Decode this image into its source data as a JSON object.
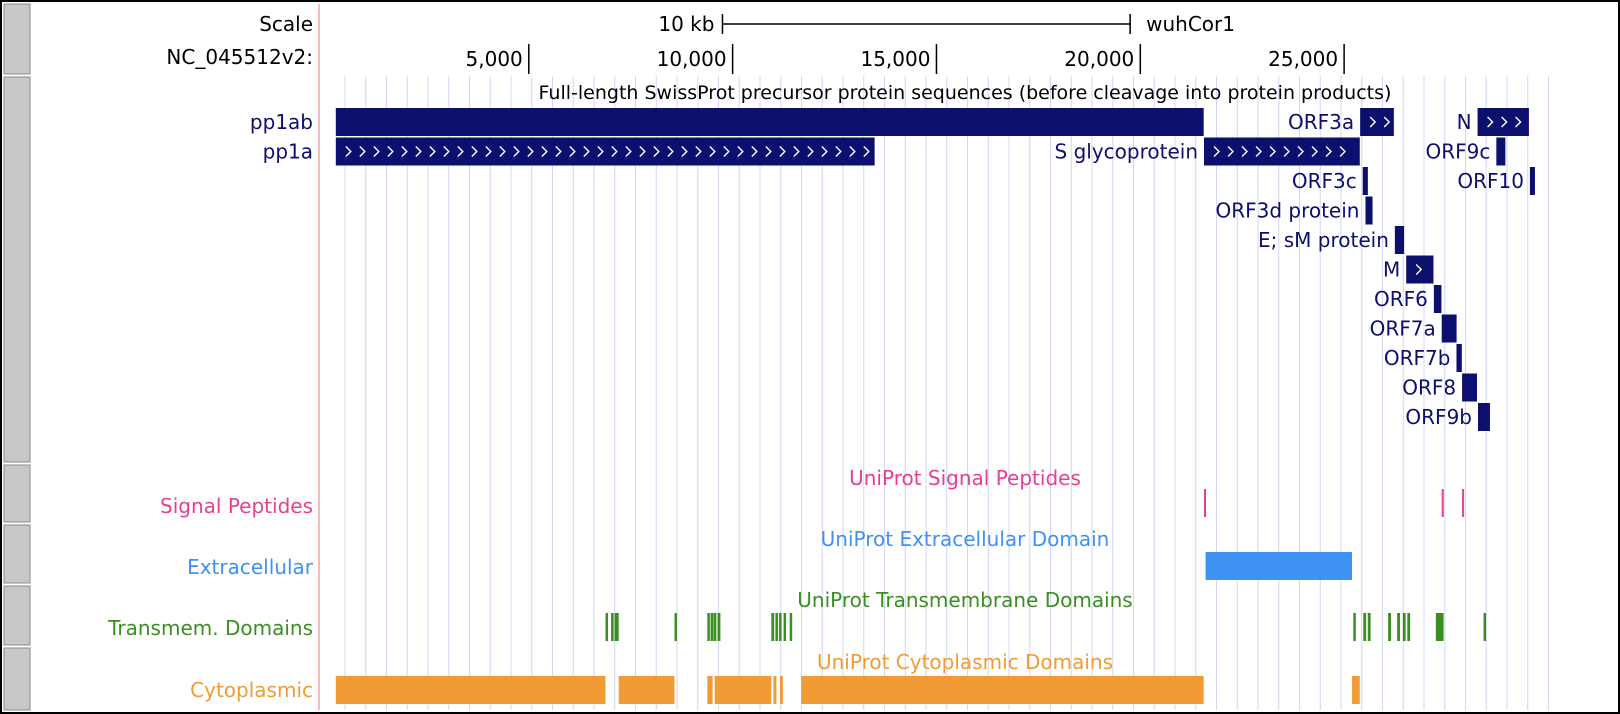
{
  "genome": "wuhCor1",
  "scale": {
    "row_label": "Scale",
    "bar_label": "10 kb",
    "bar_length_bp": 10000,
    "genome_label": "wuhCor1"
  },
  "ruler": {
    "row_label": "NC_045512v2:",
    "ticks": [
      "5,000",
      "10,000",
      "15,000",
      "20,000",
      "25,000"
    ],
    "tick_positions_bp": [
      5000,
      10000,
      15000,
      20000,
      25000
    ]
  },
  "view": {
    "start_bp": 1,
    "end_bp": 29903
  },
  "colors": {
    "proteins": "#0c0f6e",
    "signal": "#e6408f",
    "extracellular": "#3e93f2",
    "transmembrane": "#3b8f22",
    "cytoplasmic": "#f29b34",
    "grid": "#d3d6f5",
    "handle": "#c8c8c8",
    "sideline": "#f5a3a3"
  },
  "tracks": {
    "proteins": {
      "title": "Full-length SwissProt precursor protein sequences (before cleavage into protein products)",
      "features": [
        {
          "label": "pp1ab",
          "start": 266,
          "end": 21555,
          "row": 0,
          "label_side": "left-margin",
          "arrows": false
        },
        {
          "label": "pp1a",
          "start": 266,
          "end": 13483,
          "row": 1,
          "label_side": "left-margin",
          "arrows": true
        },
        {
          "label": "ORF3a",
          "start": 25393,
          "end": 26220,
          "row": 0,
          "label_side": "left",
          "arrows": true
        },
        {
          "label": "N",
          "start": 28274,
          "end": 29533,
          "row": 0,
          "label_side": "left",
          "arrows": true
        },
        {
          "label": "S glycoprotein",
          "start": 21563,
          "end": 25384,
          "row": 1,
          "label_side": "left",
          "arrows": true
        },
        {
          "label": "ORF9c",
          "start": 28734,
          "end": 28955,
          "row": 1,
          "label_side": "left",
          "arrows": false
        },
        {
          "label": "ORF3c",
          "start": 25457,
          "end": 25582,
          "row": 2,
          "label_side": "left",
          "arrows": false
        },
        {
          "label": "ORF10",
          "start": 29558,
          "end": 29674,
          "row": 2,
          "label_side": "left",
          "arrows": false
        },
        {
          "label": "ORF3d protein",
          "start": 25524,
          "end": 25697,
          "row": 3,
          "label_side": "left",
          "arrows": false
        },
        {
          "label": "E; sM protein",
          "start": 26245,
          "end": 26472,
          "row": 4,
          "label_side": "left",
          "arrows": false
        },
        {
          "label": "M",
          "start": 26523,
          "end": 27191,
          "row": 5,
          "label_side": "left",
          "arrows": true
        },
        {
          "label": "ORF6",
          "start": 27202,
          "end": 27387,
          "row": 6,
          "label_side": "left",
          "arrows": false
        },
        {
          "label": "ORF7a",
          "start": 27394,
          "end": 27759,
          "row": 7,
          "label_side": "left",
          "arrows": false
        },
        {
          "label": "ORF7b",
          "start": 27756,
          "end": 27887,
          "row": 8,
          "label_side": "left",
          "arrows": false
        },
        {
          "label": "ORF8",
          "start": 27894,
          "end": 28259,
          "row": 9,
          "label_side": "left",
          "arrows": true
        },
        {
          "label": "ORF9b",
          "start": 28284,
          "end": 28577,
          "row": 10,
          "label_side": "left",
          "arrows": false
        }
      ]
    },
    "signal": {
      "row_label": "Signal Peptides",
      "title": "UniProt Signal Peptides",
      "features": [
        {
          "start": 21563,
          "end": 21601
        },
        {
          "start": 27394,
          "end": 27438
        },
        {
          "start": 27894,
          "end": 27939
        }
      ]
    },
    "extracellular": {
      "row_label": "Extracellular",
      "title": "UniProt Extracellular Domain",
      "features": [
        {
          "start": 21602,
          "end": 25194
        }
      ]
    },
    "transmembrane": {
      "row_label": "Transmem. Domains",
      "title": "UniProt Transmembrane Domains",
      "features": [
        {
          "start": 6882,
          "end": 6944
        },
        {
          "start": 7019,
          "end": 7081
        },
        {
          "start": 7103,
          "end": 7205
        },
        {
          "start": 8574,
          "end": 8608
        },
        {
          "start": 9380,
          "end": 9430
        },
        {
          "start": 9460,
          "end": 9500
        },
        {
          "start": 9530,
          "end": 9600
        },
        {
          "start": 9630,
          "end": 9700
        },
        {
          "start": 10950,
          "end": 11020
        },
        {
          "start": 11050,
          "end": 11110
        },
        {
          "start": 11140,
          "end": 11190
        },
        {
          "start": 11250,
          "end": 11310
        },
        {
          "start": 11400,
          "end": 11460
        },
        {
          "start": 25226,
          "end": 25260
        },
        {
          "start": 25470,
          "end": 25540
        },
        {
          "start": 25580,
          "end": 25650
        },
        {
          "start": 26080,
          "end": 26150
        },
        {
          "start": 26300,
          "end": 26370
        },
        {
          "start": 26440,
          "end": 26510
        },
        {
          "start": 26550,
          "end": 26620
        },
        {
          "start": 27250,
          "end": 27440
        },
        {
          "start": 28420,
          "end": 28460
        }
      ]
    },
    "cytoplasmic": {
      "row_label": "Cytoplasmic",
      "title": "UniProt Cytoplasmic Domains",
      "features": [
        {
          "start": 266,
          "end": 6881
        },
        {
          "start": 7206,
          "end": 8573
        },
        {
          "start": 9380,
          "end": 9510
        },
        {
          "start": 9560,
          "end": 10949
        },
        {
          "start": 11000,
          "end": 11050
        },
        {
          "start": 11160,
          "end": 11210
        },
        {
          "start": 11680,
          "end": 21555
        },
        {
          "start": 25195,
          "end": 25384
        }
      ]
    }
  }
}
